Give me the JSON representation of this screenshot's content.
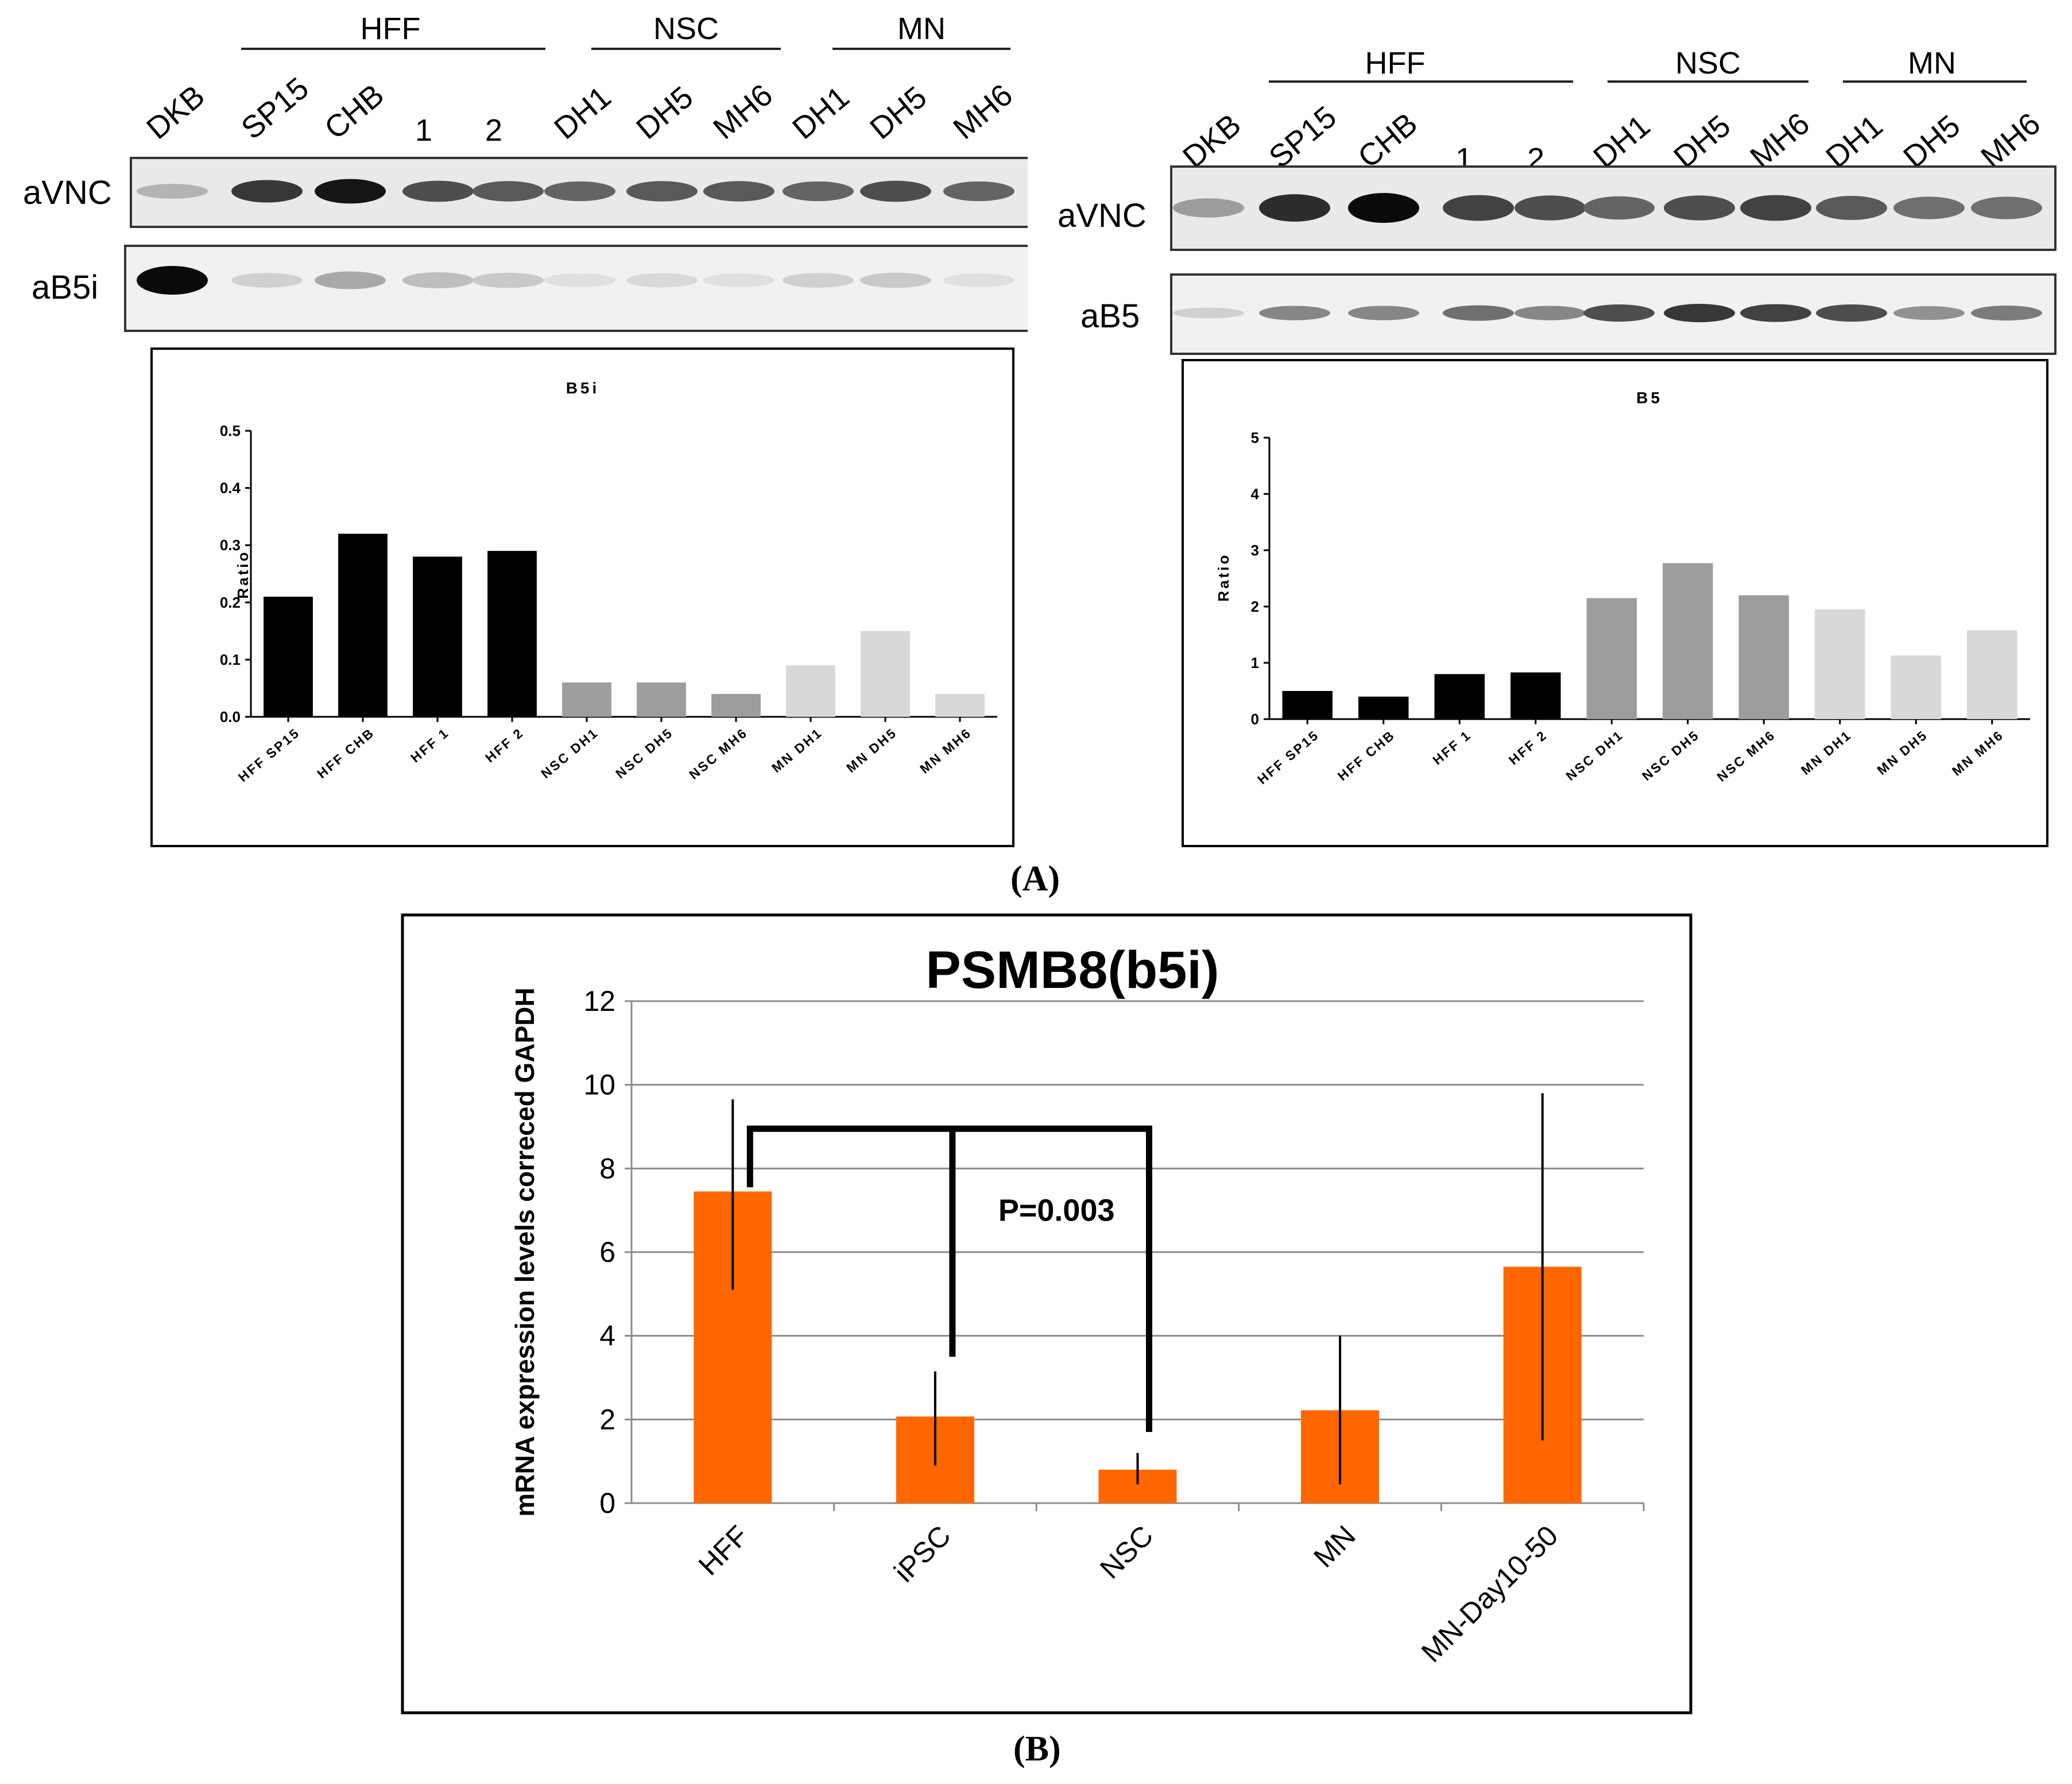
{
  "panel_labels": {
    "a": "(A)",
    "b": "(B)"
  },
  "blots": [
    {
      "id": "left",
      "lanes": [
        "DKB",
        "SP15",
        "CHB",
        "1",
        "2",
        "DH1",
        "DH5",
        "MH6",
        "DH1",
        "DH5",
        "MH6"
      ],
      "groups": [
        "HFF",
        "NSC",
        "MN"
      ],
      "rows": [
        {
          "label": "aVNC",
          "intensity": [
            0.25,
            0.8,
            0.95,
            0.7,
            0.65,
            0.6,
            0.65,
            0.65,
            0.6,
            0.7,
            0.6
          ]
        },
        {
          "label": "aB5i",
          "intensity": [
            1.0,
            0.12,
            0.3,
            0.2,
            0.15,
            0.05,
            0.08,
            0.05,
            0.12,
            0.15,
            0.05
          ]
        }
      ]
    },
    {
      "id": "right",
      "lanes": [
        "DKB",
        "SP15",
        "CHB",
        "1",
        "2",
        "DH1",
        "DH5",
        "MH6",
        "DH1",
        "DH5",
        "MH6"
      ],
      "groups": [
        "HFF",
        "NSC",
        "MN"
      ],
      "rows": [
        {
          "label": "aVNC",
          "intensity": [
            0.35,
            0.85,
            1.0,
            0.75,
            0.7,
            0.6,
            0.7,
            0.75,
            0.65,
            0.55,
            0.55
          ]
        },
        {
          "label": "aB5",
          "intensity": [
            0.12,
            0.45,
            0.45,
            0.55,
            0.45,
            0.7,
            0.8,
            0.75,
            0.7,
            0.4,
            0.5
          ]
        }
      ]
    }
  ],
  "chart_data": [
    {
      "type": "bar",
      "title": "B5i",
      "xlabel": "",
      "ylabel": "Ratio",
      "ylim": [
        0,
        0.5
      ],
      "yticks": [
        "0.0",
        "0.1",
        "0.2",
        "0.3",
        "0.4",
        "0.5"
      ],
      "categories": [
        "HFF SP15",
        "HFF CHB",
        "HFF 1",
        "HFF 2",
        "NSC DH1",
        "NSC DH5",
        "NSC MH6",
        "MN DH1",
        "MN DH5",
        "MN MH6"
      ],
      "values": [
        0.21,
        0.32,
        0.28,
        0.29,
        0.06,
        0.06,
        0.04,
        0.09,
        0.15,
        0.04
      ],
      "colors": [
        "#000000",
        "#000000",
        "#000000",
        "#000000",
        "#9d9d9d",
        "#9d9d9d",
        "#9d9d9d",
        "#d8d8d8",
        "#d8d8d8",
        "#d8d8d8"
      ]
    },
    {
      "type": "bar",
      "title": "B5",
      "xlabel": "",
      "ylabel": "Ratio",
      "ylim": [
        0,
        5
      ],
      "yticks": [
        "0",
        "1",
        "2",
        "3",
        "4",
        "5"
      ],
      "categories": [
        "HFF SP15",
        "HFF CHB",
        "HFF 1",
        "HFF 2",
        "NSC DH1",
        "NSC DH5",
        "NSC MH6",
        "MN DH1",
        "MN DH5",
        "MN MH6"
      ],
      "values": [
        0.5,
        0.4,
        0.8,
        0.83,
        2.15,
        2.77,
        2.2,
        1.95,
        1.13,
        1.58
      ],
      "colors": [
        "#000000",
        "#000000",
        "#000000",
        "#000000",
        "#9d9d9d",
        "#9d9d9d",
        "#9d9d9d",
        "#d8d8d8",
        "#d8d8d8",
        "#d8d8d8"
      ]
    },
    {
      "type": "bar",
      "title": "PSMB8(b5i)",
      "xlabel": "",
      "ylabel": "mRNA expression levels correced GAPDH",
      "ylim": [
        0,
        12
      ],
      "yticks": [
        "0",
        "2",
        "4",
        "6",
        "8",
        "10",
        "12"
      ],
      "grid": true,
      "categories": [
        "HFF",
        "iPSC",
        "NSC",
        "MN",
        "MN-Day10-50"
      ],
      "values": [
        7.45,
        2.07,
        0.8,
        2.22,
        5.65
      ],
      "error_low": [
        5.1,
        0.9,
        0.45,
        0.45,
        1.5
      ],
      "error_high": [
        9.65,
        3.15,
        1.2,
        4.0,
        9.8
      ],
      "color": "#ff6600",
      "annotation": "P=0.003",
      "significance_bracket": {
        "from": "HFF",
        "to": [
          "iPSC",
          "NSC"
        ],
        "at": 8.95
      }
    }
  ]
}
